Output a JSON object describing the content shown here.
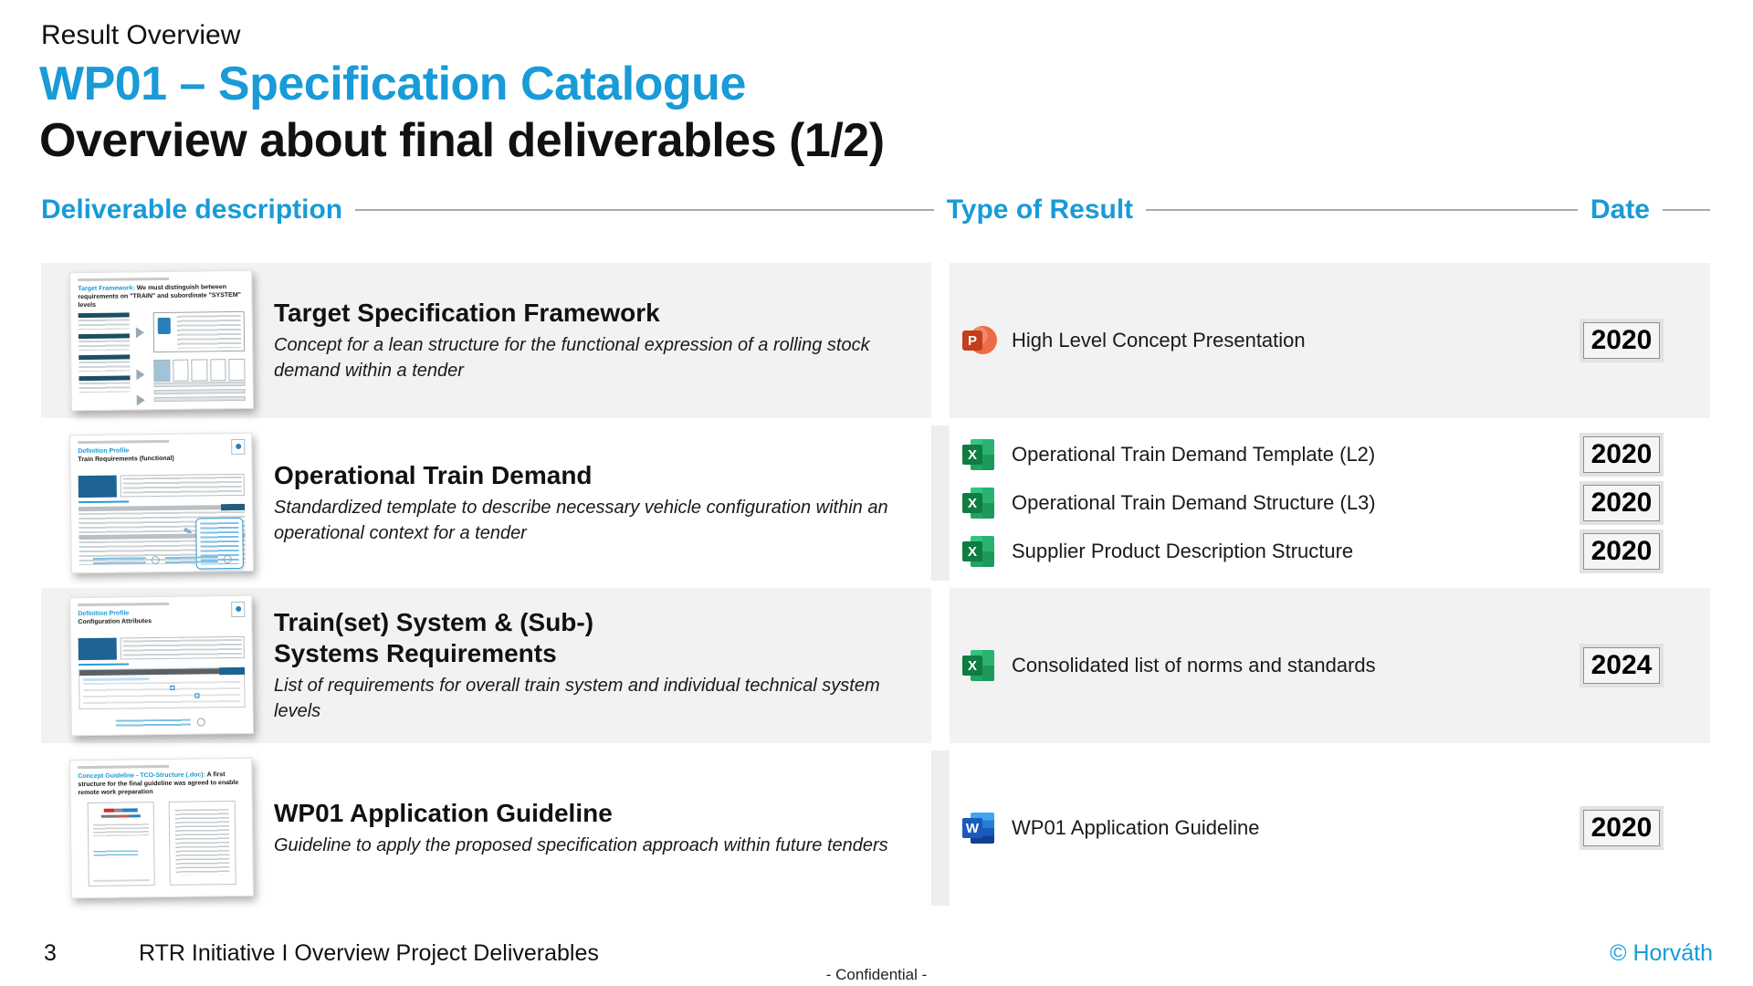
{
  "page": {
    "eyebrow": "Result Overview",
    "title": "WP01 – Specification Catalogue",
    "subtitle": "Overview about final deliverables (1/2)"
  },
  "columns": {
    "description": "Deliverable description",
    "type": "Type of Result",
    "date": "Date"
  },
  "rows": [
    {
      "title": "Target Specification Framework",
      "description": "Concept for a lean structure for the functional expression of a rolling stock demand within a tender",
      "thumbnail": {
        "variant": "framework",
        "heading_accent": "Target Framework:",
        "heading_rest": "We must distinguish between requirements on \"TRAIN\" and subordinate \"SYSTEM\" levels"
      },
      "results": [
        {
          "icon": "powerpoint",
          "icon_letter": "P",
          "label": "High Level Concept Presentation",
          "date": "2020"
        }
      ]
    },
    {
      "title": "Operational Train Demand",
      "description": "Standardized template to describe necessary vehicle configuration within an operational context for a tender",
      "thumbnail": {
        "variant": "table-callout",
        "heading_accent": "Definition Profile",
        "heading_rest": "Train Requirements (functional)"
      },
      "results": [
        {
          "icon": "excel",
          "icon_letter": "X",
          "label": "Operational Train Demand Template (L2)",
          "date": "2020"
        },
        {
          "icon": "excel",
          "icon_letter": "X",
          "label": "Operational Train Demand Structure (L3)",
          "date": "2020"
        },
        {
          "icon": "excel",
          "icon_letter": "X",
          "label": "Supplier Product Description Structure",
          "date": "2020"
        }
      ]
    },
    {
      "title": "Train(set) System & (Sub-)\nSystems Requirements",
      "description": "List of requirements for overall train system and individual technical system levels",
      "thumbnail": {
        "variant": "config-table",
        "heading_accent": "Definition Profile",
        "heading_rest": "Configuration Attributes"
      },
      "results": [
        {
          "icon": "excel",
          "icon_letter": "X",
          "label": "Consolidated list of norms and standards",
          "date": "2024"
        }
      ]
    },
    {
      "title": "WP01 Application Guideline",
      "description": "Guideline to apply the proposed specification approach within future tenders",
      "thumbnail": {
        "variant": "doc-pages",
        "heading_accent": "Concept Guideline - TCO-Structure (.doc):",
        "heading_rest": "A first structure for the final guideline was agreed to enable remote work preparation"
      },
      "results": [
        {
          "icon": "word",
          "icon_letter": "W",
          "label": "WP01 Application Guideline",
          "date": "2020"
        }
      ]
    }
  ],
  "footer": {
    "page_number": "3",
    "project": "RTR Initiative I Overview Project Deliverables",
    "confidential": "- Confidential -",
    "copyright": "© Horváth"
  },
  "colors": {
    "accent_blue": "#189BD7",
    "row_shade": "#f2f2f2",
    "powerpoint": "#C43E1C",
    "excel": "#107C41",
    "word": "#185ABD"
  }
}
